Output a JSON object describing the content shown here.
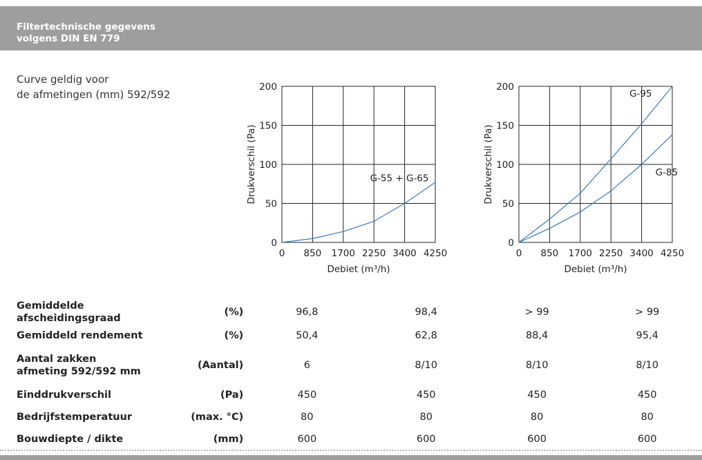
{
  "header": {
    "line1": "Filtertechnische gegevens",
    "line2": "volgens DIN EN 779"
  },
  "intro": {
    "line1": "Curve geldig voor",
    "line2": "de afmetingen (mm) 592/592"
  },
  "chart_data": [
    {
      "type": "line",
      "title": "",
      "xlabel": "Debiet (m³/h)",
      "ylabel": "Drukverschil (Pa)",
      "categories": [
        "0",
        "850",
        "1700",
        "2250",
        "3400",
        "4250"
      ],
      "yticks": [
        0,
        50,
        100,
        150,
        200
      ],
      "ylim": [
        0,
        200
      ],
      "grid": true,
      "series": [
        {
          "name": "G-55 + G-65",
          "values": [
            0,
            5,
            14,
            27,
            50,
            77
          ]
        }
      ]
    },
    {
      "type": "line",
      "title": "",
      "xlabel": "Debiet (m³/h)",
      "ylabel": "Drukverschil (Pa)",
      "categories": [
        "0",
        "850",
        "1700",
        "2250",
        "3400",
        "4250"
      ],
      "yticks": [
        0,
        50,
        100,
        150,
        200
      ],
      "ylim": [
        0,
        200
      ],
      "grid": true,
      "series": [
        {
          "name": "G-95",
          "values": [
            0,
            30,
            63,
            107,
            152,
            200
          ]
        },
        {
          "name": "G-85",
          "values": [
            0,
            18,
            39,
            66,
            100,
            138
          ]
        }
      ]
    }
  ],
  "specs": {
    "rows": [
      {
        "label": "Gemiddelde afscheidingsgraad",
        "unit": "(%)",
        "values": [
          "96,8",
          "98,4",
          "> 99",
          "> 99"
        ]
      },
      {
        "label": "Gemiddeld rendement",
        "unit": "(%)",
        "values": [
          "50,4",
          "62,8",
          "88,4",
          "95,4"
        ]
      },
      {
        "label_line1": "Aantal zakken",
        "label_line2": "afmeting 592/592 mm",
        "unit": "(Aantal)",
        "values": [
          "6",
          "8/10",
          "8/10",
          "8/10"
        ]
      },
      {
        "label": "Einddrukverschil",
        "unit": "(Pa)",
        "values": [
          "450",
          "450",
          "450",
          "450"
        ]
      },
      {
        "label": "Bedrijfstemperatuur",
        "unit": "(max. °C)",
        "values": [
          "80",
          "80",
          "80",
          "80"
        ]
      },
      {
        "label": "Bouwdiepte / dikte",
        "unit": "(mm)",
        "values": [
          "600",
          "600",
          "600",
          "600"
        ]
      }
    ]
  },
  "colors": {
    "header_bg": "#9e9e9e",
    "curve": "#3a7ab8",
    "grid": "#222222"
  }
}
